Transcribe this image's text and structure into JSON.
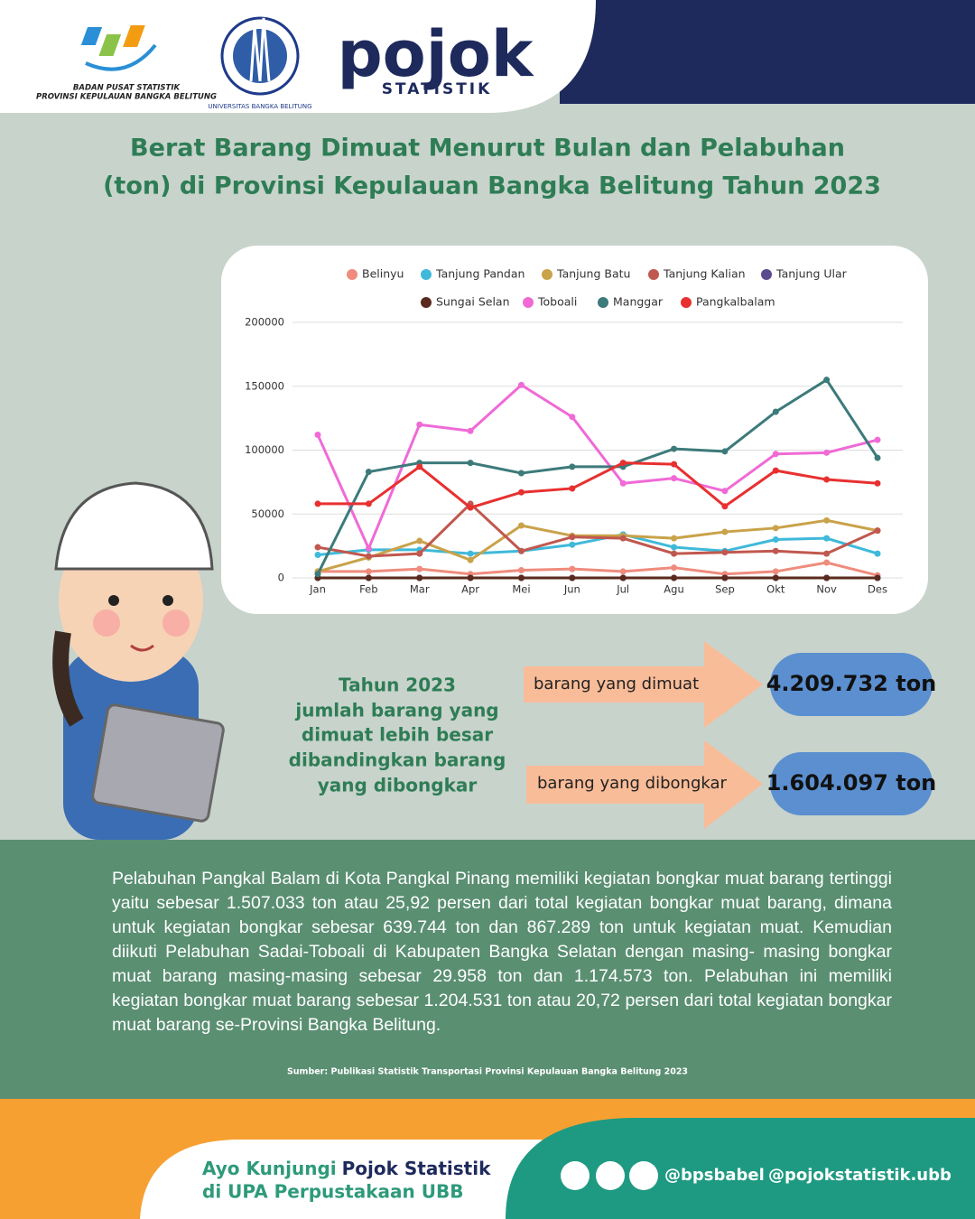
{
  "header": {
    "bps_name": "BADAN PUSAT STATISTIK",
    "bps_region": "PROVINSI KEPULAUAN BANGKA BELITUNG",
    "university": "UNIVERSITAS BANGKA BELITUNG",
    "brand": "pojok",
    "brand_sub": "STATISTIK"
  },
  "title": [
    "Berat Barang Dimuat Menurut Bulan dan Pelabuhan",
    "(ton) di Provinsi Kepulauan Bangka Belitung Tahun 2023"
  ],
  "chart_data": {
    "type": "line",
    "legend": "top",
    "grid": true,
    "categories": [
      "Jan",
      "Feb",
      "Mar",
      "Apr",
      "Mei",
      "Jun",
      "Jul",
      "Agu",
      "Sep",
      "Okt",
      "Nov",
      "Des"
    ],
    "ylim": [
      0,
      200000
    ],
    "yticks": [
      0,
      50000,
      100000,
      150000,
      200000
    ],
    "series": [
      {
        "name": "Belinyu",
        "color": "#ef8c7d",
        "values": [
          5000,
          5000,
          7000,
          3000,
          6000,
          7000,
          5000,
          8000,
          3000,
          5000,
          12000,
          2000
        ]
      },
      {
        "name": "Tanjung Pandan",
        "color": "#3fb9d9",
        "values": [
          18000,
          22000,
          22000,
          19000,
          21000,
          26000,
          34000,
          24000,
          21000,
          30000,
          31000,
          19000
        ]
      },
      {
        "name": "Tanjung Batu",
        "color": "#c9a24a",
        "values": [
          5000,
          16000,
          29000,
          14000,
          41000,
          33000,
          33000,
          31000,
          36000,
          39000,
          45000,
          37000
        ]
      },
      {
        "name": "Tanjung Kalian",
        "color": "#c0584f",
        "values": [
          24000,
          17000,
          19000,
          58000,
          21000,
          32000,
          31000,
          19000,
          20000,
          21000,
          19000,
          37000
        ]
      },
      {
        "name": "Tanjung Ular",
        "color": "#5c4a8e",
        "values": [
          0,
          0,
          0,
          0,
          0,
          0,
          0,
          0,
          0,
          0,
          0,
          0
        ]
      },
      {
        "name": "Sungai Selan",
        "color": "#5a2a1e",
        "values": [
          0,
          0,
          0,
          0,
          0,
          0,
          0,
          0,
          0,
          0,
          0,
          0
        ]
      },
      {
        "name": "Toboali",
        "color": "#f06ad6",
        "values": [
          112000,
          23000,
          120000,
          115000,
          151000,
          126000,
          74000,
          78000,
          68000,
          97000,
          98000,
          108000
        ]
      },
      {
        "name": "Manggar",
        "color": "#3d7a7a",
        "values": [
          3000,
          83000,
          90000,
          90000,
          82000,
          87000,
          87000,
          101000,
          99000,
          130000,
          155000,
          94000
        ]
      },
      {
        "name": "Pangkalbalam",
        "color": "#e83030",
        "values": [
          58000,
          58000,
          87000,
          55000,
          67000,
          70000,
          90000,
          89000,
          56000,
          84000,
          77000,
          74000
        ]
      }
    ]
  },
  "summary": {
    "text": [
      "Tahun 2023",
      "jumlah barang yang",
      "dimuat lebih besar",
      "dibandingkan barang",
      "yang dibongkar"
    ],
    "loaded_label": "barang yang dimuat",
    "loaded_value": "4.209.732 ton",
    "unloaded_label": "barang yang dibongkar",
    "unloaded_value": "1.604.097 ton"
  },
  "description": "Pelabuhan Pangkal Balam di Kota Pangkal Pinang memiliki kegiatan bongkar muat barang tertinggi yaitu sebesar 1.507.033 ton atau 25,92 persen dari total kegiatan bongkar muat barang, dimana untuk kegiatan bongkar sebesar 639.744 ton dan 867.289 ton untuk kegiatan muat. Kemudian diikuti Pelabuhan Sadai-Toboali di Kabupaten Bangka Selatan dengan masing- masing bongkar muat barang masing-masing sebesar 29.958 ton dan 1.174.573 ton. Pelabuhan ini memiliki kegiatan bongkar muat barang sebesar 1.204.531 ton atau 20,72 persen dari total kegiatan bongkar muat barang se-Provinsi Bangka Belitung.",
  "source": "Sumber: Publikasi Statistik Transportasi Provinsi Kepulauan Bangka Belitung 2023",
  "footer": {
    "invite": "Ayo Kunjungi",
    "place": "Pojok Statistik",
    "location": "di UPA Perpustakaan UBB",
    "handle_bps": "@bpsbabel",
    "handle_pojok": "@pojokstatistik.ubb"
  }
}
